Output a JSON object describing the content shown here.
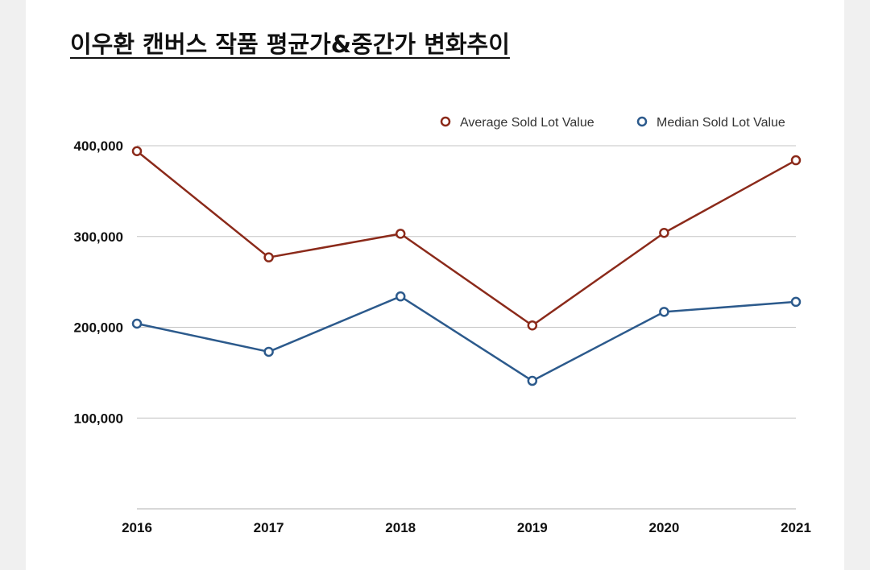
{
  "title": "이우환 캔버스 작품 평균가&중간가 변화추이",
  "chart_data": {
    "type": "line",
    "title": "이우환 캔버스 작품 평균가&중간가 변화추이",
    "xlabel": "",
    "ylabel": "",
    "categories": [
      "2016",
      "2017",
      "2018",
      "2019",
      "2020",
      "2021"
    ],
    "ylim": [
      0,
      400000
    ],
    "yticks": [
      100000,
      200000,
      300000,
      400000
    ],
    "ytick_labels": [
      "100,000",
      "200,000",
      "300,000",
      "400,000"
    ],
    "grid": true,
    "legend_position": "top-right",
    "series": [
      {
        "name": "Average Sold Lot Value",
        "color": "#8b2a1a",
        "values": [
          394000,
          277000,
          303000,
          202000,
          304000,
          384000
        ]
      },
      {
        "name": "Median Sold Lot Value",
        "color": "#2c5a8c",
        "values": [
          204000,
          173000,
          234000,
          141000,
          217000,
          228000
        ]
      }
    ]
  }
}
